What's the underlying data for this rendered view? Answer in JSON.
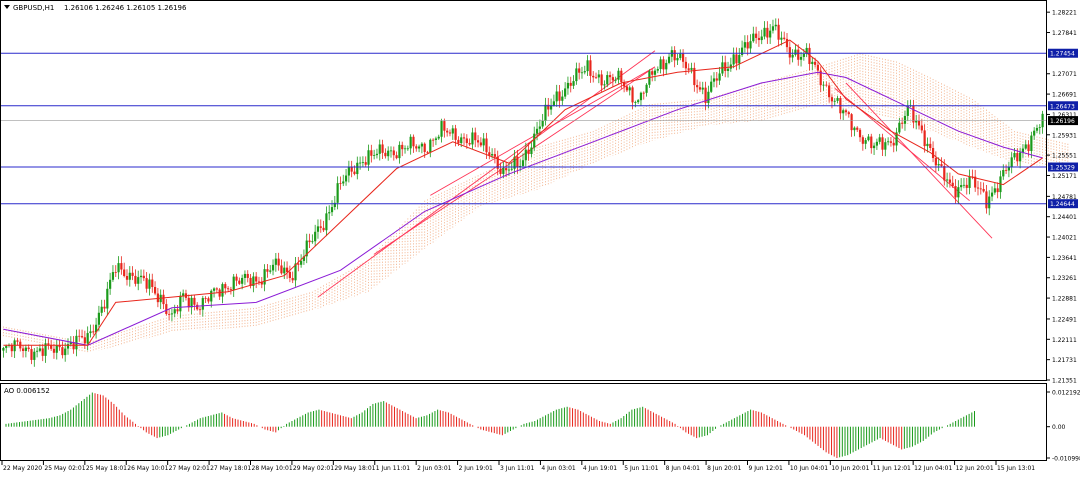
{
  "main_panel": {
    "symbol_label": "GBPUSD,H1",
    "ohlc_label": "1.26106 1.26246 1.26105 1.26196"
  },
  "price_axis": {
    "ticks": [
      "1.28221",
      "1.27841",
      "1.27454",
      "1.27071",
      "1.26691",
      "1.26473",
      "1.26311",
      "1.26196",
      "1.25931",
      "1.25551",
      "1.25329",
      "1.25171",
      "1.24781",
      "1.24644",
      "1.24401",
      "1.24021",
      "1.23641",
      "1.23261",
      "1.22881",
      "1.22491",
      "1.22111",
      "1.21731",
      "1.21351"
    ]
  },
  "ao_panel": {
    "label": "AO 0.006152",
    "ticks": [
      "0.012192",
      "0.00",
      "-0.010998"
    ]
  },
  "time_axis": {
    "labels": [
      "22 May 2020",
      "25 May 02:01",
      "25 May 18:01",
      "26 May 10:01",
      "27 May 02:01",
      "27 May 18:01",
      "28 May 10:01",
      "29 May 02:01",
      "29 May 18:01",
      "1 Jun 11:01",
      "2 Jun 03:01",
      "2 Jun 19:01",
      "3 Jun 11:01",
      "4 Jun 03:01",
      "4 Jun 19:01",
      "5 Jun 11:01",
      "8 Jun 04:01",
      "8 Jun 20:01",
      "9 Jun 12:01",
      "10 Jun 04:01",
      "10 Jun 20:01",
      "11 Jun 12:01",
      "12 Jun 04:01",
      "12 Jun 20:01",
      "15 Jun 13:01"
    ]
  },
  "colors": {
    "bull": "#1a9a1a",
    "bear": "#e8261c",
    "level_line": "#2a2acc",
    "level_highlight": "#0f1fa8",
    "current_highlight": "#000000",
    "ma_fast": "#e8261c",
    "ma_slow": "#8a1ad6",
    "cloud_up": "#f2b089",
    "cloud_down": "#d9a8e8",
    "channel": "#ff3355"
  },
  "chart_data": {
    "type": "candlestick",
    "symbol": "GBPUSD",
    "timeframe": "H1",
    "open": 1.26106,
    "high": 1.26246,
    "low": 1.26105,
    "close": 1.26196,
    "y_range": [
      1.21351,
      1.28411
    ],
    "horizontal_levels": [
      1.27454,
      1.26473,
      1.25329,
      1.24644
    ],
    "current_price": 1.26196,
    "close_path": [
      [
        0,
        1.219
      ],
      [
        6,
        1.22
      ],
      [
        12,
        1.2185
      ],
      [
        18,
        1.2195
      ],
      [
        24,
        1.22
      ],
      [
        30,
        1.2215
      ],
      [
        36,
        1.228
      ],
      [
        40,
        1.2345
      ],
      [
        46,
        1.233
      ],
      [
        52,
        1.231
      ],
      [
        56,
        1.229
      ],
      [
        60,
        1.225
      ],
      [
        64,
        1.229
      ],
      [
        70,
        1.2275
      ],
      [
        76,
        1.23
      ],
      [
        82,
        1.232
      ],
      [
        90,
        1.232
      ],
      [
        96,
        1.235
      ],
      [
        102,
        1.233
      ],
      [
        108,
        1.238
      ],
      [
        114,
        1.243
      ],
      [
        120,
        1.25
      ],
      [
        128,
        1.255
      ],
      [
        136,
        1.256
      ],
      [
        144,
        1.257
      ],
      [
        150,
        1.257
      ],
      [
        156,
        1.26
      ],
      [
        162,
        1.259
      ],
      [
        168,
        1.258
      ],
      [
        174,
        1.256
      ],
      [
        178,
        1.252
      ],
      [
        184,
        1.254
      ],
      [
        190,
        1.26
      ],
      [
        196,
        1.266
      ],
      [
        202,
        1.269
      ],
      [
        208,
        1.272
      ],
      [
        214,
        1.269
      ],
      [
        220,
        1.27
      ],
      [
        226,
        1.265
      ],
      [
        232,
        1.272
      ],
      [
        238,
        1.274
      ],
      [
        244,
        1.272
      ],
      [
        250,
        1.266
      ],
      [
        256,
        1.272
      ],
      [
        262,
        1.274
      ],
      [
        268,
        1.278
      ],
      [
        274,
        1.279
      ],
      [
        280,
        1.275
      ],
      [
        286,
        1.274
      ],
      [
        292,
        1.269
      ],
      [
        298,
        1.264
      ],
      [
        304,
        1.26
      ],
      [
        310,
        1.257
      ],
      [
        316,
        1.258
      ],
      [
        322,
        1.264
      ],
      [
        328,
        1.259
      ],
      [
        334,
        1.252
      ],
      [
        338,
        1.249
      ],
      [
        344,
        1.251
      ],
      [
        350,
        1.247
      ],
      [
        356,
        1.252
      ],
      [
        362,
        1.256
      ],
      [
        366,
        1.259
      ],
      [
        370,
        1.262
      ]
    ],
    "ma_fast_path": [
      [
        0,
        1.22
      ],
      [
        30,
        1.22
      ],
      [
        40,
        1.228
      ],
      [
        60,
        1.229
      ],
      [
        80,
        1.23
      ],
      [
        100,
        1.233
      ],
      [
        120,
        1.243
      ],
      [
        140,
        1.253
      ],
      [
        160,
        1.258
      ],
      [
        180,
        1.254
      ],
      [
        200,
        1.264
      ],
      [
        220,
        1.269
      ],
      [
        240,
        1.271
      ],
      [
        260,
        1.272
      ],
      [
        280,
        1.277
      ],
      [
        290,
        1.273
      ],
      [
        300,
        1.266
      ],
      [
        316,
        1.26
      ],
      [
        330,
        1.256
      ],
      [
        340,
        1.252
      ],
      [
        356,
        1.25
      ],
      [
        370,
        1.255
      ]
    ],
    "ma_slow_path": [
      [
        0,
        1.223
      ],
      [
        30,
        1.22
      ],
      [
        60,
        1.227
      ],
      [
        90,
        1.228
      ],
      [
        120,
        1.234
      ],
      [
        150,
        1.245
      ],
      [
        180,
        1.252
      ],
      [
        210,
        1.258
      ],
      [
        240,
        1.264
      ],
      [
        270,
        1.269
      ],
      [
        290,
        1.271
      ],
      [
        300,
        1.27
      ],
      [
        320,
        1.265
      ],
      [
        340,
        1.26
      ],
      [
        356,
        1.257
      ],
      [
        370,
        1.255
      ]
    ],
    "cloud": [
      [
        0,
        1.2235,
        1.2215
      ],
      [
        30,
        1.2205,
        1.2185
      ],
      [
        60,
        1.2255,
        1.2225
      ],
      [
        90,
        1.227,
        1.2235
      ],
      [
        110,
        1.23,
        1.2265
      ],
      [
        130,
        1.236,
        1.23
      ],
      [
        150,
        1.247,
        1.238
      ],
      [
        170,
        1.252,
        1.246
      ],
      [
        190,
        1.257,
        1.249
      ],
      [
        210,
        1.26,
        1.254
      ],
      [
        230,
        1.265,
        1.258
      ],
      [
        250,
        1.266,
        1.261
      ],
      [
        270,
        1.269,
        1.262
      ],
      [
        290,
        1.272,
        1.265
      ],
      [
        305,
        1.2745,
        1.264
      ],
      [
        318,
        1.273,
        1.262
      ],
      [
        330,
        1.27,
        1.26
      ],
      [
        345,
        1.266,
        1.257
      ],
      [
        360,
        1.26,
        1.254
      ],
      [
        380,
        1.2575,
        1.253
      ]
    ],
    "channels": [
      [
        [
          112,
          1.229
        ],
        [
          232,
          1.275
        ]
      ],
      [
        [
          132,
          1.237
        ],
        [
          232,
          1.272
        ]
      ],
      [
        [
          152,
          1.248
        ],
        [
          232,
          1.272
        ]
      ],
      [
        [
          300,
          1.269
        ],
        [
          352,
          1.24
        ]
      ],
      [
        [
          296,
          1.268
        ],
        [
          344,
          1.247
        ]
      ]
    ],
    "ao_values": [
      0.001,
      0.0015,
      0.002,
      0.0025,
      0.003,
      0.004,
      0.006,
      0.009,
      0.012,
      0.011,
      0.008,
      0.004,
      0.001,
      -0.002,
      -0.004,
      -0.003,
      -0.001,
      0.001,
      0.003,
      0.004,
      0.005,
      0.003,
      0.002,
      0.001,
      -0.001,
      -0.002,
      0.001,
      0.003,
      0.005,
      0.006,
      0.005,
      0.004,
      0.003,
      0.005,
      0.008,
      0.009,
      0.007,
      0.005,
      0.003,
      0.004,
      0.006,
      0.005,
      0.003,
      0.001,
      -0.001,
      -0.002,
      -0.003,
      -0.001,
      0.001,
      0.002,
      0.004,
      0.006,
      0.007,
      0.006,
      0.004,
      0.002,
      0.001,
      0.003,
      0.006,
      0.007,
      0.005,
      0.003,
      0.001,
      -0.002,
      -0.004,
      -0.003,
      0.0,
      0.002,
      0.004,
      0.006,
      0.005,
      0.003,
      0.001,
      -0.001,
      -0.003,
      -0.006,
      -0.009,
      -0.011,
      -0.01,
      -0.008,
      -0.006,
      -0.004,
      -0.006,
      -0.008,
      -0.007,
      -0.005,
      -0.002,
      0.0,
      0.002,
      0.004,
      0.006
    ],
    "ao_range": [
      -0.010998,
      0.012192
    ]
  }
}
